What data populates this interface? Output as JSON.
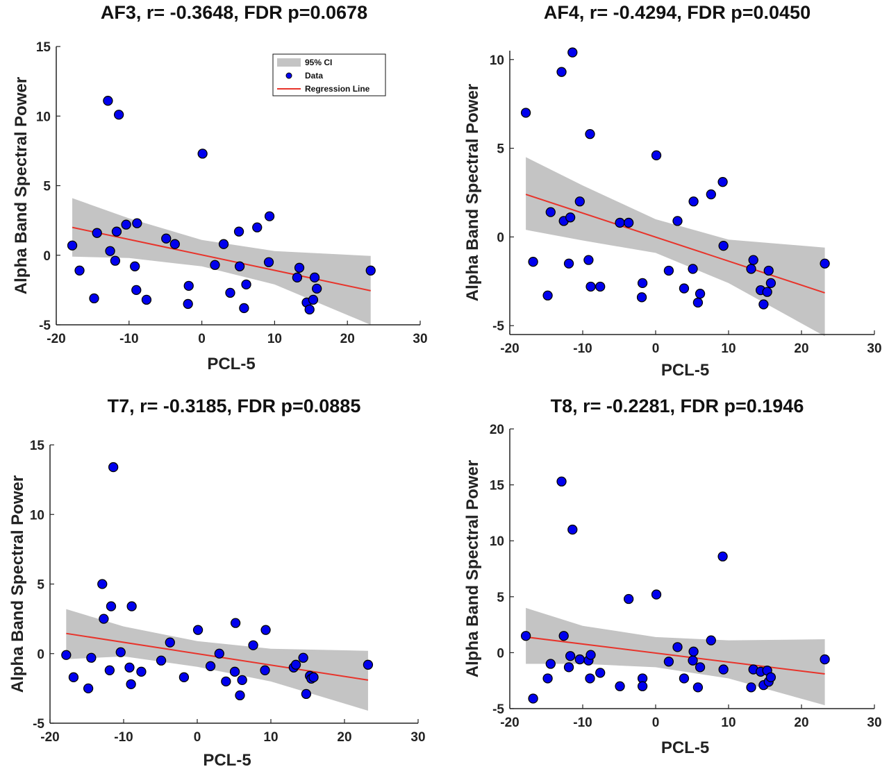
{
  "chart_data": [
    {
      "type": "scatter",
      "title": "AF3, r= -0.3648, FDR p=0.0678",
      "xlabel": "PCL-5",
      "ylabel": "Alpha Band Spectral Power",
      "xlim": [
        -20,
        30
      ],
      "ylim": [
        -5,
        15
      ],
      "xticks": [
        -20,
        -10,
        0,
        10,
        20,
        30
      ],
      "yticks": [
        -5,
        0,
        5,
        10,
        15
      ],
      "legend": {
        "placement": "top-right",
        "entries": [
          "95% CI",
          "Data",
          "Regression Line"
        ]
      },
      "points": [
        [
          -17.8,
          0.7
        ],
        [
          -16.8,
          -1.1
        ],
        [
          -14.8,
          -3.1
        ],
        [
          -14.4,
          1.6
        ],
        [
          -12.9,
          11.1
        ],
        [
          -12.6,
          0.3
        ],
        [
          -11.9,
          -0.4
        ],
        [
          -11.7,
          1.7
        ],
        [
          -11.4,
          10.1
        ],
        [
          -10.4,
          2.2
        ],
        [
          -9.2,
          -0.8
        ],
        [
          -9.0,
          -2.5
        ],
        [
          -8.9,
          2.3
        ],
        [
          -7.6,
          -3.2
        ],
        [
          -4.9,
          1.2
        ],
        [
          -3.7,
          0.8
        ],
        [
          -1.8,
          -2.2
        ],
        [
          -1.9,
          -3.5
        ],
        [
          0.1,
          7.3
        ],
        [
          1.8,
          -0.7
        ],
        [
          3.0,
          0.8
        ],
        [
          3.9,
          -2.7
        ],
        [
          5.1,
          1.7
        ],
        [
          5.2,
          -0.8
        ],
        [
          5.8,
          -3.8
        ],
        [
          6.1,
          -2.1
        ],
        [
          7.6,
          2.0
        ],
        [
          9.2,
          -0.5
        ],
        [
          9.3,
          2.8
        ],
        [
          13.1,
          -1.6
        ],
        [
          13.4,
          -0.9
        ],
        [
          14.4,
          -3.4
        ],
        [
          14.8,
          -3.9
        ],
        [
          15.3,
          -3.2
        ],
        [
          15.5,
          -1.6
        ],
        [
          15.8,
          -2.4
        ],
        [
          23.2,
          -1.1
        ]
      ],
      "regression": [
        [
          -17.8,
          2.0
        ],
        [
          23.2,
          -2.55
        ]
      ],
      "ci_upper": [
        [
          -17.8,
          4.1
        ],
        [
          -10,
          2.65
        ],
        [
          0,
          1.1
        ],
        [
          10,
          0.3
        ],
        [
          23.2,
          -0.05
        ]
      ],
      "ci_lower": [
        [
          -17.8,
          -0.1
        ],
        [
          -10,
          -0.2
        ],
        [
          0,
          -0.8
        ],
        [
          10,
          -2.1
        ],
        [
          23.2,
          -5.0
        ]
      ]
    },
    {
      "type": "scatter",
      "title": "AF4, r= -0.4294, FDR p=0.0450",
      "xlabel": "PCL-5",
      "ylabel": "Alpha Band Spectral Power",
      "xlim": [
        -20,
        30
      ],
      "ylim": [
        -5.5,
        10.5
      ],
      "xticks": [
        -20,
        -10,
        0,
        10,
        20,
        30
      ],
      "yticks": [
        -5,
        0,
        5,
        10
      ],
      "points": [
        [
          -17.8,
          7.0
        ],
        [
          -16.8,
          -1.4
        ],
        [
          -14.8,
          -3.3
        ],
        [
          -14.4,
          1.4
        ],
        [
          -12.9,
          9.3
        ],
        [
          -12.6,
          0.9
        ],
        [
          -11.9,
          -1.5
        ],
        [
          -11.7,
          1.1
        ],
        [
          -11.4,
          10.4
        ],
        [
          -10.4,
          2.0
        ],
        [
          -9.2,
          -1.3
        ],
        [
          -9.0,
          5.8
        ],
        [
          -8.9,
          -2.8
        ],
        [
          -7.6,
          -2.8
        ],
        [
          -4.9,
          0.8
        ],
        [
          -3.7,
          0.8
        ],
        [
          -1.8,
          -2.6
        ],
        [
          -1.9,
          -3.4
        ],
        [
          0.1,
          4.6
        ],
        [
          1.8,
          -1.9
        ],
        [
          3.0,
          0.9
        ],
        [
          3.9,
          -2.9
        ],
        [
          5.1,
          -1.8
        ],
        [
          5.2,
          2.0
        ],
        [
          5.8,
          -3.7
        ],
        [
          6.1,
          -3.2
        ],
        [
          7.6,
          2.4
        ],
        [
          9.2,
          3.1
        ],
        [
          9.3,
          -0.5
        ],
        [
          13.1,
          -1.8
        ],
        [
          13.4,
          -1.3
        ],
        [
          14.4,
          -3.0
        ],
        [
          14.8,
          -3.8
        ],
        [
          15.3,
          -3.1
        ],
        [
          15.5,
          -1.9
        ],
        [
          15.8,
          -2.6
        ],
        [
          23.2,
          -1.5
        ]
      ],
      "regression": [
        [
          -17.8,
          2.4
        ],
        [
          23.2,
          -3.15
        ]
      ],
      "ci_upper": [
        [
          -17.8,
          4.5
        ],
        [
          -10,
          2.9
        ],
        [
          0,
          1.0
        ],
        [
          10,
          -0.15
        ],
        [
          23.2,
          -0.6
        ]
      ],
      "ci_lower": [
        [
          -17.8,
          0.4
        ],
        [
          -10,
          -0.2
        ],
        [
          0,
          -0.9
        ],
        [
          10,
          -2.6
        ],
        [
          23.2,
          -5.6
        ]
      ]
    },
    {
      "type": "scatter",
      "title": "T7, r= -0.3185, FDR p=0.0885",
      "xlabel": "PCL-5",
      "ylabel": "Alpha Band Spectral Power",
      "xlim": [
        -20,
        30
      ],
      "ylim": [
        -5,
        15
      ],
      "xticks": [
        -20,
        -10,
        0,
        10,
        20,
        30
      ],
      "yticks": [
        -5,
        0,
        5,
        10,
        15
      ],
      "points": [
        [
          -17.8,
          -0.1
        ],
        [
          -16.8,
          -1.7
        ],
        [
          -14.8,
          -2.5
        ],
        [
          -14.4,
          -0.3
        ],
        [
          -12.9,
          5.0
        ],
        [
          -12.7,
          2.5
        ],
        [
          -11.9,
          -1.2
        ],
        [
          -11.7,
          3.4
        ],
        [
          -11.4,
          13.4
        ],
        [
          -10.4,
          0.1
        ],
        [
          -9.2,
          -1.0
        ],
        [
          -9.0,
          -2.2
        ],
        [
          -8.9,
          3.4
        ],
        [
          -7.6,
          -1.3
        ],
        [
          -4.9,
          -0.5
        ],
        [
          -3.7,
          0.8
        ],
        [
          -1.8,
          -1.7
        ],
        [
          0.1,
          1.7
        ],
        [
          1.8,
          -0.9
        ],
        [
          3.0,
          0.0
        ],
        [
          3.9,
          -2.0
        ],
        [
          5.1,
          -1.3
        ],
        [
          5.2,
          2.2
        ],
        [
          5.8,
          -3.0
        ],
        [
          6.1,
          -1.9
        ],
        [
          7.6,
          0.6
        ],
        [
          9.2,
          -1.2
        ],
        [
          9.3,
          1.7
        ],
        [
          13.1,
          -1.0
        ],
        [
          13.4,
          -0.8
        ],
        [
          14.4,
          -0.3
        ],
        [
          14.8,
          -2.9
        ],
        [
          15.3,
          -1.6
        ],
        [
          15.5,
          -1.8
        ],
        [
          15.8,
          -1.7
        ],
        [
          23.2,
          -0.8
        ]
      ],
      "regression": [
        [
          -17.8,
          1.45
        ],
        [
          23.2,
          -1.9
        ]
      ],
      "ci_upper": [
        [
          -17.8,
          3.2
        ],
        [
          -10,
          1.95
        ],
        [
          0,
          0.9
        ],
        [
          10,
          0.35
        ],
        [
          23.2,
          0.2
        ]
      ],
      "ci_lower": [
        [
          -17.8,
          -0.4
        ],
        [
          -10,
          -0.2
        ],
        [
          0,
          -0.95
        ],
        [
          10,
          -2.0
        ],
        [
          23.2,
          -4.1
        ]
      ]
    },
    {
      "type": "scatter",
      "title": "T8, r= -0.2281, FDR p=0.1946",
      "xlabel": "PCL-5",
      "ylabel": "Alpha Band Spectral Power",
      "xlim": [
        -20,
        30
      ],
      "ylim": [
        -5,
        20
      ],
      "xticks": [
        -20,
        -10,
        0,
        10,
        20,
        30
      ],
      "yticks": [
        -5,
        0,
        5,
        10,
        15,
        20
      ],
      "points": [
        [
          -17.8,
          1.5
        ],
        [
          -16.8,
          -4.1
        ],
        [
          -14.8,
          -2.3
        ],
        [
          -14.4,
          -1.0
        ],
        [
          -12.9,
          15.3
        ],
        [
          -12.6,
          1.5
        ],
        [
          -11.9,
          -1.3
        ],
        [
          -11.7,
          -0.3
        ],
        [
          -11.4,
          11.0
        ],
        [
          -10.4,
          -0.6
        ],
        [
          -9.2,
          -0.7
        ],
        [
          -9.0,
          -2.3
        ],
        [
          -8.9,
          -0.2
        ],
        [
          -7.6,
          -1.8
        ],
        [
          -4.9,
          -3.0
        ],
        [
          -3.7,
          4.8
        ],
        [
          -1.8,
          -2.3
        ],
        [
          -1.8,
          -3.0
        ],
        [
          0.1,
          5.2
        ],
        [
          1.8,
          -0.8
        ],
        [
          3.0,
          0.5
        ],
        [
          3.9,
          -2.3
        ],
        [
          5.1,
          -0.7
        ],
        [
          5.2,
          0.1
        ],
        [
          5.8,
          -3.1
        ],
        [
          6.1,
          -1.3
        ],
        [
          7.6,
          1.1
        ],
        [
          9.2,
          8.6
        ],
        [
          9.3,
          -1.5
        ],
        [
          13.1,
          -3.1
        ],
        [
          13.4,
          -1.5
        ],
        [
          14.4,
          -1.7
        ],
        [
          14.8,
          -2.9
        ],
        [
          15.3,
          -1.6
        ],
        [
          15.5,
          -2.6
        ],
        [
          15.8,
          -2.2
        ],
        [
          23.2,
          -0.6
        ]
      ],
      "regression": [
        [
          -17.8,
          1.4
        ],
        [
          23.2,
          -1.9
        ]
      ],
      "ci_upper": [
        [
          -17.8,
          4.0
        ],
        [
          -10,
          2.4
        ],
        [
          0,
          1.4
        ],
        [
          10,
          1.1
        ],
        [
          23.2,
          1.2
        ]
      ],
      "ci_lower": [
        [
          -17.8,
          -1.0
        ],
        [
          -10,
          -1.0
        ],
        [
          0,
          -1.3
        ],
        [
          10,
          -2.3
        ],
        [
          23.2,
          -4.7
        ]
      ]
    }
  ],
  "colors": {
    "point_fill": "#0000ee",
    "point_stroke": "#000000",
    "ci_fill": "#c4c4c4",
    "regression": "#e8332a",
    "axis": "#222222"
  }
}
